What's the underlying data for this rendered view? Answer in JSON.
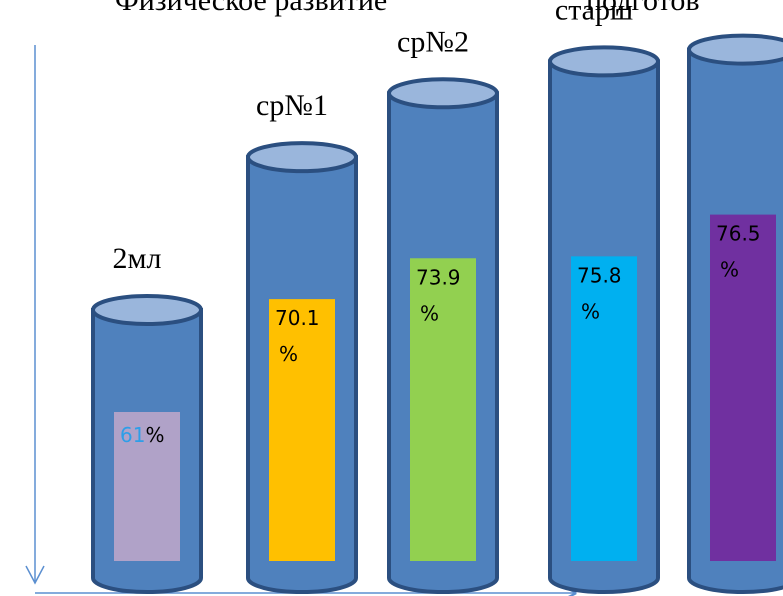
{
  "title": {
    "left": "Физическое развитие",
    "right": "подготов"
  },
  "colors": {
    "cylinder_body": "#4f81bd",
    "cylinder_edge": "#2b4f80",
    "cylinder_top": "#9ab6dc",
    "axis": "#5b8fd0",
    "value_highlight": "#2e9ee8"
  },
  "chart_data": {
    "type": "bar",
    "style": "cylinder",
    "categories": [
      "2мл",
      "ср№1",
      "ср№2",
      "старш",
      ""
    ],
    "values": [
      61,
      70.1,
      73.9,
      75.8,
      76.5
    ],
    "value_labels": [
      {
        "number": "61",
        "unit": "%"
      },
      {
        "number": "70.1",
        "unit": "%"
      },
      {
        "number": "73.9",
        "unit": "%"
      },
      {
        "number": "75.8",
        "unit": "%"
      },
      {
        "number": "76.5",
        "unit": "%"
      }
    ],
    "panel_colors": [
      "#b0a2c8",
      "#ffc000",
      "#92d050",
      "#00b0f0",
      "#7030a0"
    ],
    "grid": false,
    "legend": "none"
  }
}
